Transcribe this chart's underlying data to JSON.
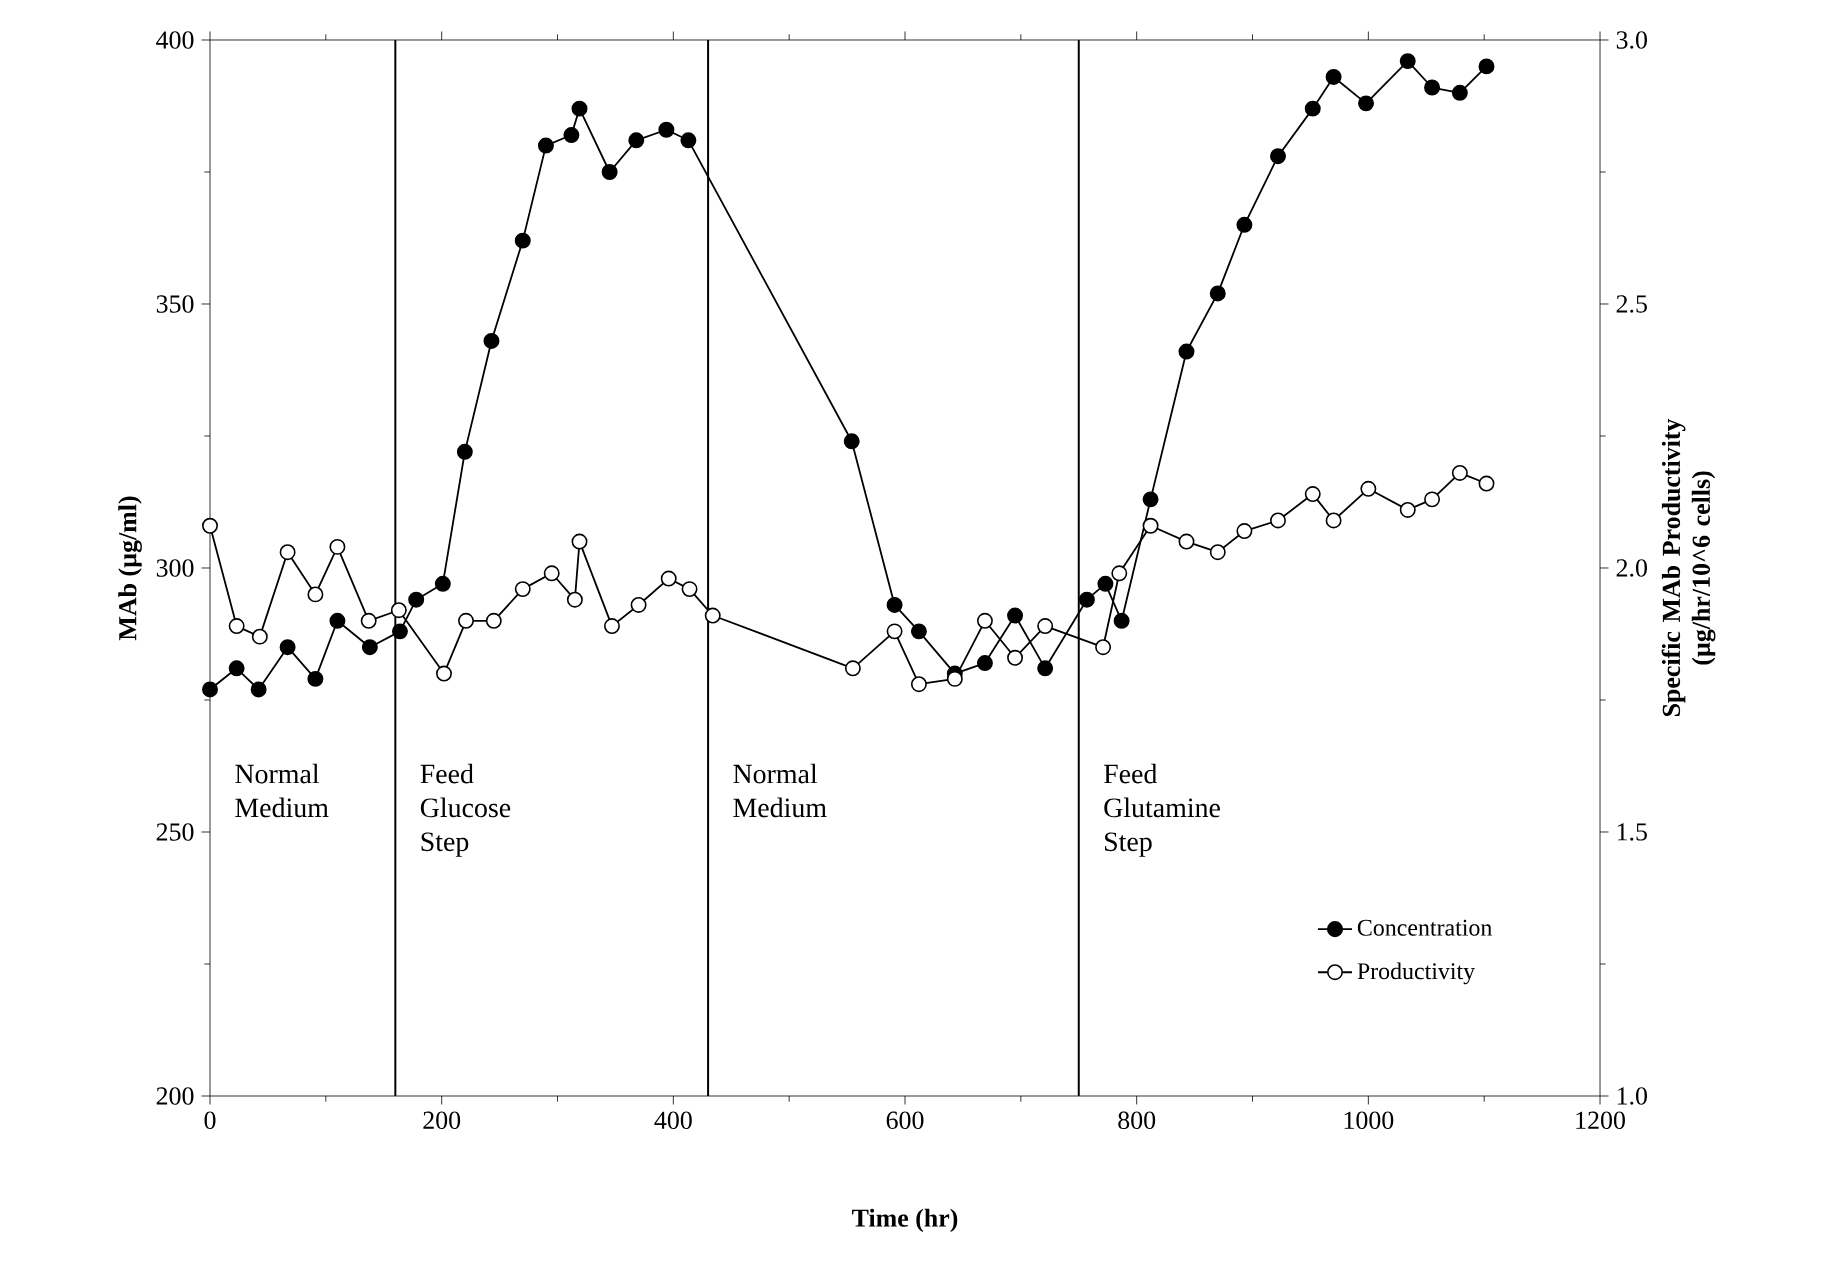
{
  "chart_data": {
    "type": "line",
    "xlabel": "Time (hr)",
    "ylabel": "MAb (µg/ml)",
    "y2label": "Specific MAb Productivity (µg/hr/10^6 cells)",
    "series": [
      {
        "name": "Concentration",
        "color": "#000000",
        "x": [
          0,
          23,
          42,
          67,
          91,
          110,
          138,
          164,
          178,
          201,
          220,
          243,
          270,
          290,
          312,
          319,
          345,
          368,
          394,
          413,
          554,
          591,
          612,
          643,
          669,
          695,
          721,
          757,
          773,
          787,
          812,
          843,
          870,
          893,
          922,
          952,
          970,
          998,
          1034,
          1055,
          1079,
          1102
        ],
        "values": [
          277,
          281,
          277,
          285,
          279,
          290,
          285,
          288,
          294,
          297,
          322,
          343,
          362,
          380,
          382,
          387,
          375,
          381,
          383,
          381,
          324,
          293,
          288,
          280,
          282,
          291,
          281,
          294,
          297,
          290,
          313,
          341,
          352,
          365,
          378,
          387,
          393,
          388,
          396,
          391,
          390,
          395
        ]
      },
      {
        "name": "Productivity",
        "color": "#ffffff",
        "axis": "y2",
        "x": [
          0,
          23,
          43,
          67,
          91,
          110,
          137,
          163,
          202,
          221,
          245,
          270,
          295,
          315,
          319,
          347,
          370,
          396,
          414,
          434,
          555,
          591,
          612,
          643,
          669,
          695,
          721,
          771,
          785,
          812,
          843,
          870,
          893,
          922,
          952,
          970,
          1000,
          1034,
          1055,
          1079,
          1102
        ],
        "values": [
          2.08,
          1.89,
          1.87,
          2.03,
          1.95,
          2.04,
          1.9,
          1.92,
          1.8,
          1.9,
          1.9,
          1.96,
          1.99,
          1.94,
          2.05,
          1.89,
          1.93,
          1.98,
          1.96,
          1.91,
          1.81,
          1.88,
          1.78,
          1.79,
          1.9,
          1.83,
          1.89,
          1.85,
          1.99,
          2.08,
          2.05,
          2.03,
          2.07,
          2.09,
          2.14,
          2.09,
          2.15,
          2.11,
          2.13,
          2.18,
          2.16
        ]
      }
    ],
    "xlim": [
      0,
      1200
    ],
    "xticks": [
      0,
      200,
      400,
      600,
      800,
      1000,
      1200
    ],
    "ylim": [
      200,
      400
    ],
    "yticks": [
      200,
      250,
      300,
      350,
      400
    ],
    "y2lim": [
      1.0,
      3.0
    ],
    "y2ticks": [
      {
        "value": 1.0,
        "label": "1.0"
      },
      {
        "value": 1.5,
        "label": "1.5"
      },
      {
        "value": 2.0,
        "label": "2.0"
      },
      {
        "value": 2.5,
        "label": "2.5"
      },
      {
        "value": 3.0,
        "label": "3.0"
      }
    ],
    "ref_lines": [
      {
        "axis": "x",
        "value": 160
      },
      {
        "axis": "x",
        "value": 430
      },
      {
        "axis": "x",
        "value": 750
      }
    ],
    "annotations": [
      "Normal Medium",
      "Feed Glucose Step",
      "Normal Medium",
      "Feed Glutamine Step"
    ],
    "legend": "bottom right",
    "marker": "circle",
    "line_style": "solid",
    "grid": false
  }
}
